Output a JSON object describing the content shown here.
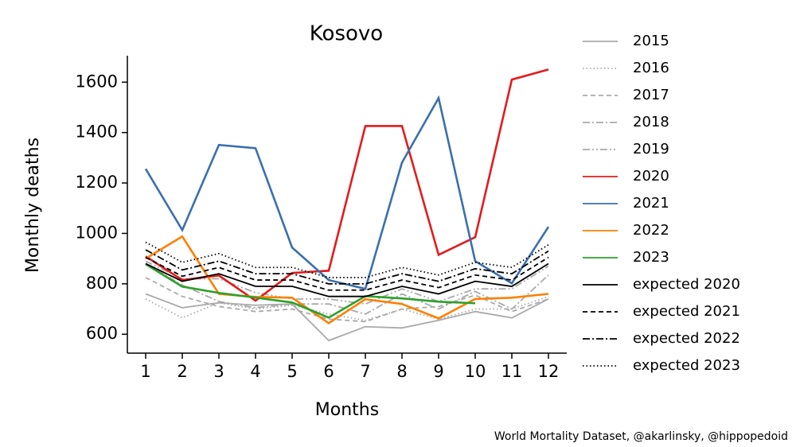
{
  "chart_data": {
    "type": "line",
    "title": "Kosovo",
    "xlabel": "Months",
    "ylabel": "Monthly deaths",
    "source": "World Mortality Dataset, @akarlinsky, @hippopedoid",
    "x": [
      1,
      2,
      3,
      4,
      5,
      6,
      7,
      8,
      9,
      10,
      11,
      12
    ],
    "xlim": [
      0.5,
      12.5
    ],
    "xticks": [
      1,
      2,
      3,
      4,
      5,
      6,
      7,
      8,
      9,
      10,
      11,
      12
    ],
    "ylim": [
      525,
      1705
    ],
    "yticks": [
      600,
      800,
      1000,
      1200,
      1400,
      1600
    ],
    "legend": "outside right",
    "series": [
      {
        "name": "2015",
        "color": "#aaaaaa",
        "style": "solid",
        "values": [
          760,
          705,
          725,
          715,
          720,
          575,
          630,
          625,
          655,
          690,
          665,
          740
        ]
      },
      {
        "name": "2016",
        "color": "#aaaaaa",
        "style": "dotted",
        "values": [
          740,
          665,
          725,
          700,
          715,
          680,
          655,
          700,
          660,
          700,
          700,
          750
        ]
      },
      {
        "name": "2017",
        "color": "#aaaaaa",
        "style": "dashed",
        "values": [
          825,
          750,
          710,
          690,
          700,
          660,
          650,
          700,
          710,
          755,
          690,
          740
        ]
      },
      {
        "name": "2018",
        "color": "#aaaaaa",
        "style": "dashdot",
        "values": [
          880,
          795,
          730,
          705,
          720,
          720,
          680,
          760,
          700,
          770,
          700,
          835
        ]
      },
      {
        "name": "2019",
        "color": "#aaaaaa",
        "style": "dashdotdot",
        "values": [
          890,
          820,
          820,
          765,
          740,
          740,
          720,
          780,
          730,
          780,
          780,
          870
        ]
      },
      {
        "name": "2020",
        "color": "#e41a1c",
        "style": "solid",
        "values": [
          909,
          815,
          833,
          733,
          843,
          852,
          1426,
          1426,
          915,
          985,
          1610,
          1650
        ]
      },
      {
        "name": "2021",
        "color": "#3a6fb0",
        "style": "solid",
        "values": [
          1256,
          1013,
          1351,
          1338,
          944,
          815,
          780,
          1281,
          1537,
          890,
          802,
          1026
        ]
      },
      {
        "name": "2022",
        "color": "#ff7f00",
        "style": "solid",
        "values": [
          900,
          988,
          760,
          748,
          745,
          644,
          739,
          720,
          663,
          740,
          745,
          760
        ]
      },
      {
        "name": "2023",
        "color": "#2ca02c",
        "style": "solid",
        "values": [
          878,
          789,
          764,
          745,
          726,
          666,
          751,
          742,
          729,
          723,
          null,
          null
        ]
      },
      {
        "name": "expected 2020",
        "color": "#000000",
        "style": "solid",
        "values": [
          880,
          810,
          840,
          790,
          790,
          750,
          750,
          790,
          760,
          810,
          790,
          880
        ]
      },
      {
        "name": "expected 2021",
        "color": "#000000",
        "style": "dashed",
        "values": [
          905,
          830,
          865,
          815,
          815,
          775,
          775,
          815,
          785,
          835,
          815,
          905
        ]
      },
      {
        "name": "expected 2022",
        "color": "#000000",
        "style": "dashdot",
        "values": [
          935,
          855,
          890,
          840,
          840,
          800,
          800,
          840,
          810,
          860,
          840,
          930
        ]
      },
      {
        "name": "expected 2023",
        "color": "#000000",
        "style": "dotted",
        "values": [
          965,
          885,
          920,
          865,
          865,
          825,
          825,
          865,
          835,
          885,
          865,
          955
        ]
      }
    ]
  }
}
